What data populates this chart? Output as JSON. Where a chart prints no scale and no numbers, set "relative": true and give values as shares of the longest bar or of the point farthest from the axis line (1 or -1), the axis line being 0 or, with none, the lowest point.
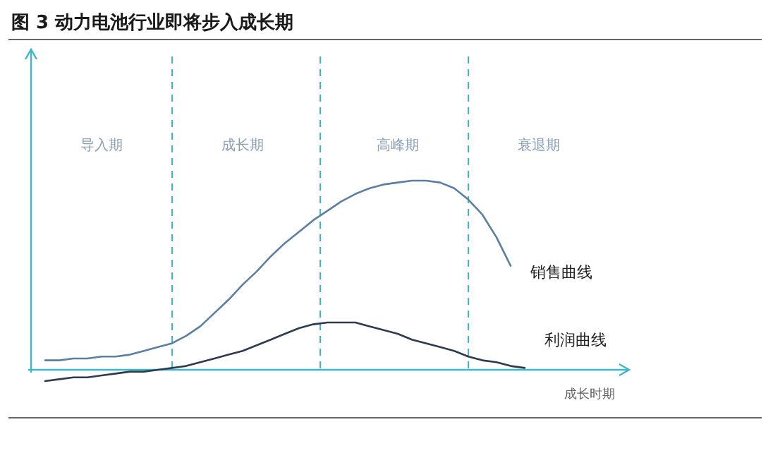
{
  "chart_data": {
    "type": "line",
    "title": "图 3  动力电池行业即将步入成长期",
    "xlabel": "成长时期",
    "relative": true,
    "grid": "x",
    "ref_lines": [
      {
        "axis": "y",
        "value": 0,
        "color": "#3fb6c9"
      }
    ],
    "categories": [
      null,
      null,
      null,
      null,
      null,
      "导入期",
      null,
      null,
      null,
      null,
      null,
      null,
      null,
      null,
      null,
      "成长期",
      null,
      null,
      null,
      null,
      null,
      null,
      null,
      null,
      null,
      null,
      "高峰期",
      null,
      null,
      null,
      null,
      null,
      null,
      null,
      null,
      null,
      "衰退期",
      null,
      null,
      null,
      null,
      null,
      null
    ],
    "series": [
      {
        "name": "销售曲线",
        "color": "#5b7ea3",
        "values": [
          null,
          0.05,
          0.05,
          0.06,
          0.06,
          0.07,
          0.07,
          0.08,
          0.1,
          0.12,
          0.14,
          0.18,
          0.23,
          0.3,
          0.37,
          0.45,
          0.52,
          0.6,
          0.67,
          0.73,
          0.79,
          0.84,
          0.89,
          0.93,
          0.96,
          0.98,
          0.99,
          1,
          1,
          0.99,
          0.96,
          0.9,
          0.82,
          0.7,
          0.55,
          null,
          null,
          null,
          null,
          null,
          null,
          null,
          null
        ]
      },
      {
        "name": "利润曲线",
        "color": "#2e3b4c",
        "values": [
          null,
          -0.06,
          -0.05,
          -0.04,
          -0.04,
          -0.03,
          -0.02,
          -0.01,
          -0.01,
          0,
          0.01,
          0.02,
          0.04,
          0.06,
          0.08,
          0.1,
          0.13,
          0.16,
          0.19,
          0.22,
          0.24,
          0.25,
          0.25,
          0.25,
          0.23,
          0.21,
          0.19,
          0.16,
          0.14,
          0.12,
          0.1,
          0.07,
          0.05,
          0.04,
          0.02,
          0.01,
          null,
          null,
          null,
          null,
          null,
          null,
          null
        ]
      }
    ]
  }
}
